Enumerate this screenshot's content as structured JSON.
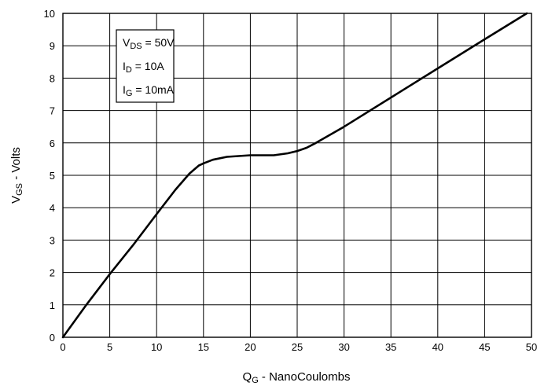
{
  "chart_data": {
    "type": "line",
    "title": "",
    "xlabel": {
      "main": "Q",
      "sub": "G",
      "rest": " - NanoCoulombs"
    },
    "ylabel": {
      "main": "V",
      "sub": "GS",
      "rest": " - Volts"
    },
    "xlim": [
      0,
      50
    ],
    "ylim": [
      0,
      10
    ],
    "x_ticks": [
      "0",
      "5",
      "10",
      "15",
      "20",
      "25",
      "30",
      "35",
      "40",
      "45",
      "50"
    ],
    "y_ticks": [
      "0",
      "1",
      "2",
      "3",
      "4",
      "5",
      "6",
      "7",
      "8",
      "9",
      "10"
    ],
    "grid": true,
    "series": [
      {
        "x": [
          0,
          2.5,
          5,
          7.5,
          10,
          12,
          13.5,
          14.5,
          15,
          16,
          17.5,
          20,
          22.5,
          24,
          25,
          26,
          27,
          30,
          35,
          40,
          45,
          49.5
        ],
        "y": [
          0,
          1.0,
          1.95,
          2.85,
          3.8,
          4.55,
          5.05,
          5.3,
          5.37,
          5.48,
          5.57,
          5.62,
          5.62,
          5.68,
          5.75,
          5.85,
          6.0,
          6.5,
          7.4,
          8.3,
          9.2,
          10.0
        ]
      }
    ],
    "annotation_box": {
      "lines": [
        {
          "main": "V",
          "sub": "DS",
          "rest": " = 50V"
        },
        {
          "main": "I",
          "sub": "D",
          "rest": " = 10A"
        },
        {
          "main": "I",
          "sub": "G",
          "rest": " = 10mA"
        }
      ]
    }
  }
}
